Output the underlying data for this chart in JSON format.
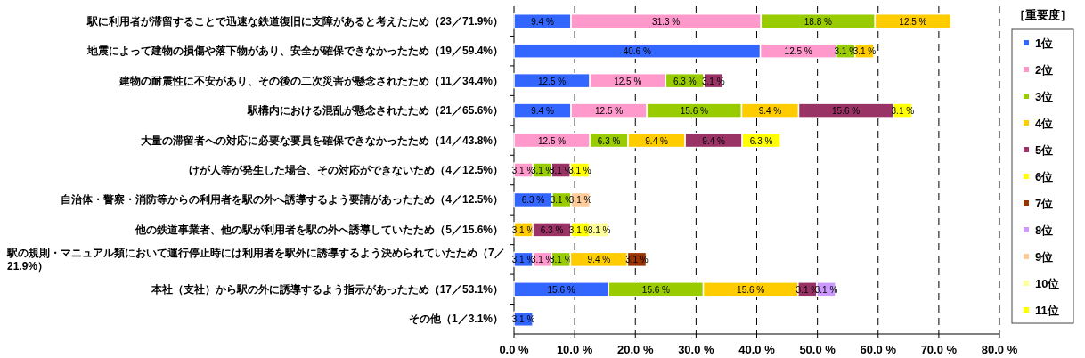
{
  "chart_data": {
    "type": "bar",
    "orientation": "horizontal",
    "stacked": true,
    "categories": [
      "駅に利用者が滞留することで迅速な鉄道復旧に支障があると考えたため（23／71.9%）",
      "地震によって建物の損傷や落下物があり、安全が確保できなかったため（19／59.4%）",
      "建物の耐震性に不安があり、その後の二次災害が懸念されたため（11／34.4%）",
      "駅構内における混乱が懸念されたため（21／65.6%）",
      "大量の滞留者への対応に必要な要員を確保できなかったため（14／43.8%）",
      "けが人等が発生した場合、その対応ができないため（4／12.5%）",
      "自治体・警察・消防等からの利用者を駅の外へ誘導するよう要請があったため（4／12.5%）",
      "他の鉄道事業者、他の駅が利用者を駅の外へ誘導していたため（5／15.6%）",
      "駅の規則・マニュアル類において運行停止時には利用者を駅外に誘導するよう決められていたため（7／21.9%）",
      "本社（支社）から駅の外に誘導するよう指示があったため（17／53.1%）",
      "その他（1／3.1%）"
    ],
    "series": [
      {
        "name": "1位",
        "color": "#3366ff",
        "values": [
          9.4,
          40.6,
          12.5,
          9.4,
          null,
          null,
          6.3,
          null,
          3.1,
          15.6,
          3.1
        ],
        "value_labels": [
          "9.4 %",
          "40.6 %",
          "12.5 %",
          "9.4 %",
          null,
          null,
          "6.3 %",
          null,
          "3.1 %",
          "15.6 %",
          "3.1 %"
        ]
      },
      {
        "name": "2位",
        "color": "#ff99cc",
        "values": [
          31.3,
          12.5,
          12.5,
          12.5,
          12.5,
          3.1,
          null,
          null,
          3.1,
          null,
          null
        ],
        "value_labels": [
          "31.3 %",
          "12.5 %",
          "12.5 %",
          "12.5 %",
          "12.5 %",
          "3.1 %",
          null,
          null,
          "3.1 %",
          null,
          null
        ]
      },
      {
        "name": "3位",
        "color": "#99cc00",
        "values": [
          18.8,
          3.1,
          6.3,
          15.6,
          6.3,
          3.1,
          3.1,
          null,
          3.1,
          15.6,
          null
        ],
        "value_labels": [
          "18.8 %",
          "3.1 %",
          "6.3 %",
          "15.6 %",
          "6.3 %",
          "3.1 %",
          "3.1 %",
          null,
          "3.1 %",
          "15.6 %",
          null
        ]
      },
      {
        "name": "4位",
        "color": "#ffcc00",
        "values": [
          12.5,
          3.1,
          null,
          9.4,
          9.4,
          null,
          null,
          3.1,
          9.4,
          15.6,
          null
        ],
        "value_labels": [
          "12.5 %",
          "3.1 %",
          null,
          "9.4 %",
          "9.4 %",
          null,
          null,
          "3.1 %",
          "9.4 %",
          "15.6 %",
          null
        ]
      },
      {
        "name": "5位",
        "color": "#993366",
        "values": [
          null,
          null,
          3.1,
          15.6,
          9.4,
          3.1,
          null,
          6.3,
          null,
          3.1,
          null
        ],
        "value_labels": [
          null,
          null,
          "3.1 %",
          "15.6 %",
          "9.4 %",
          "3.1 %",
          null,
          "6.3 %",
          null,
          "3.1 %",
          null
        ]
      },
      {
        "name": "6位",
        "color": "#ffff00",
        "values": [
          null,
          null,
          null,
          3.1,
          6.3,
          3.1,
          null,
          3.1,
          null,
          null,
          null
        ],
        "value_labels": [
          null,
          null,
          null,
          "3.1 %",
          "6.3 %",
          "3.1 %",
          null,
          "3.1 %",
          null,
          null,
          null
        ]
      },
      {
        "name": "7位",
        "color": "#993300",
        "values": [
          null,
          null,
          null,
          null,
          null,
          null,
          null,
          null,
          3.1,
          null,
          null
        ],
        "value_labels": [
          null,
          null,
          null,
          null,
          null,
          null,
          null,
          null,
          "3.1 %",
          null,
          null
        ]
      },
      {
        "name": "8位",
        "color": "#cc99ff",
        "values": [
          null,
          null,
          null,
          null,
          null,
          null,
          null,
          null,
          null,
          3.1,
          null
        ],
        "value_labels": [
          null,
          null,
          null,
          null,
          null,
          null,
          null,
          null,
          null,
          "3.1 %",
          null
        ]
      },
      {
        "name": "9位",
        "color": "#ffcc99",
        "values": [
          null,
          null,
          null,
          null,
          null,
          null,
          3.1,
          null,
          null,
          null,
          null
        ],
        "value_labels": [
          null,
          null,
          null,
          null,
          null,
          null,
          "3.1 %",
          null,
          null,
          null,
          null
        ]
      },
      {
        "name": "10位",
        "color": "#ffff99",
        "values": [
          null,
          null,
          null,
          null,
          null,
          null,
          null,
          3.1,
          null,
          null,
          null
        ],
        "value_labels": [
          null,
          null,
          null,
          null,
          null,
          null,
          null,
          "3.1 %",
          null,
          null,
          null
        ]
      },
      {
        "name": "11位",
        "color": "#ffff00",
        "values": [
          null,
          null,
          null,
          null,
          null,
          null,
          null,
          null,
          null,
          null,
          null
        ],
        "value_labels": [
          null,
          null,
          null,
          null,
          null,
          null,
          null,
          null,
          null,
          null,
          null
        ]
      }
    ],
    "xlim": [
      0,
      80
    ],
    "xticks": [
      {
        "value": 0,
        "label": "0.0 %"
      },
      {
        "value": 10,
        "label": "10.0 %"
      },
      {
        "value": 20,
        "label": "20.0 %"
      },
      {
        "value": 30,
        "label": "30.0 %"
      },
      {
        "value": 40,
        "label": "40.0 %"
      },
      {
        "value": 50,
        "label": "50.0 %"
      },
      {
        "value": 60,
        "label": "60.0 %"
      },
      {
        "value": 70,
        "label": "70.0 %"
      },
      {
        "value": 80,
        "label": "80.0 %"
      }
    ],
    "grid": "x",
    "legend": "right",
    "legend_title": "［重要度］"
  }
}
